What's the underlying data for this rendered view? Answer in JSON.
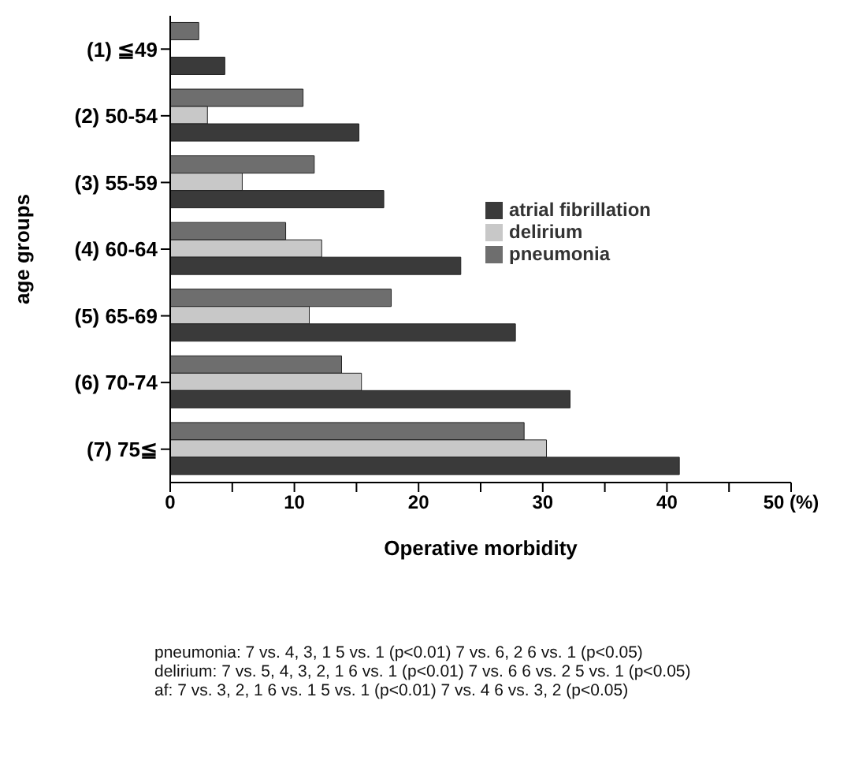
{
  "chart_data": {
    "type": "bar",
    "orientation": "horizontal",
    "xlabel": "Operative morbidity",
    "ylabel": "age groups",
    "categories": [
      "(1)  ≦49",
      "(2) 50-54",
      "(3) 55-59",
      "(4) 60-64",
      "(5) 65-69",
      "(6) 70-74",
      "(7)  75≦"
    ],
    "series": [
      {
        "name": "pneumonia",
        "color": "#6e6e6e",
        "values": [
          2.3,
          10.7,
          11.6,
          9.3,
          17.8,
          13.8,
          28.5
        ]
      },
      {
        "name": "delirium",
        "color": "#c8c8c8",
        "values": [
          0,
          3.0,
          5.8,
          12.2,
          11.2,
          15.4,
          30.3
        ]
      },
      {
        "name": "atrial fibrillation",
        "color": "#3a3a3a",
        "values": [
          4.4,
          15.2,
          17.2,
          23.4,
          27.8,
          32.2,
          41.0
        ]
      }
    ],
    "xlim": [
      0,
      50
    ],
    "xticks": [
      0,
      {
        "value": 5,
        "label": null
      },
      10,
      {
        "value": 15,
        "label": null
      },
      20,
      {
        "value": 25,
        "label": null
      },
      30,
      {
        "value": 35,
        "label": null
      },
      40,
      {
        "value": 45,
        "label": null
      },
      {
        "value": 50,
        "label": "50 (%)"
      }
    ],
    "grid": false,
    "legend": "right",
    "annotations": [
      "pneumonia: 7 vs. 4, 3, 1  5 vs. 1 (p<0.01)  7 vs. 6, 2  6 vs. 1 (p<0.05)",
      "delirium: 7 vs. 5, 4, 3, 2, 1  6 vs. 1 (p<0.01)  7 vs. 6  6 vs. 2  5 vs. 1 (p<0.05)",
      "af: 7 vs. 3, 2, 1  6 vs. 1  5 vs. 1 (p<0.01)  7 vs. 4  6 vs. 3, 2 (p<0.05)"
    ]
  }
}
